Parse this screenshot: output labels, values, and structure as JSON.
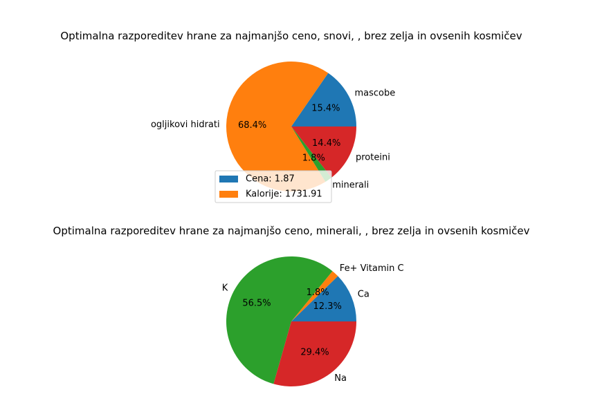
{
  "chart_data": [
    {
      "type": "pie",
      "title": "Optimalna razporeditev hrane za najmanjšo ceno, snovi, , brez zelja in ovsenih kosmičev",
      "slices": [
        {
          "label": "mascobe",
          "value": 15.4,
          "pct_label": "15.4%",
          "color": "#1f77b4"
        },
        {
          "label": "ogljikovi hidrati",
          "value": 68.4,
          "pct_label": "68.4%",
          "color": "#ff7f0e"
        },
        {
          "label": "minerali",
          "value": 1.8,
          "pct_label": "1.8%",
          "color": "#2ca02c"
        },
        {
          "label": "proteini",
          "value": 14.4,
          "pct_label": "14.4%",
          "color": "#d62728"
        }
      ],
      "legend": {
        "placement": "lower-left",
        "entries": [
          {
            "text": "Cena: 1.87",
            "color": "#1f77b4"
          },
          {
            "text": "Kalorije: 1731.91",
            "color": "#ff7f0e"
          }
        ]
      }
    },
    {
      "type": "pie",
      "title": "Optimalna razporeditev hrane za najmanjšo ceno, minerali, , brez zelja in ovsenih kosmičev",
      "slices": [
        {
          "label": "Ca",
          "value": 12.3,
          "pct_label": "12.3%",
          "color": "#1f77b4"
        },
        {
          "label": "Fe+ Vitamin C",
          "value": 1.8,
          "pct_label": "1.8%",
          "color": "#ff7f0e"
        },
        {
          "label": "K",
          "value": 56.5,
          "pct_label": "56.5%",
          "color": "#2ca02c"
        },
        {
          "label": "Na",
          "value": 29.4,
          "pct_label": "29.4%",
          "color": "#d62728"
        }
      ]
    }
  ]
}
